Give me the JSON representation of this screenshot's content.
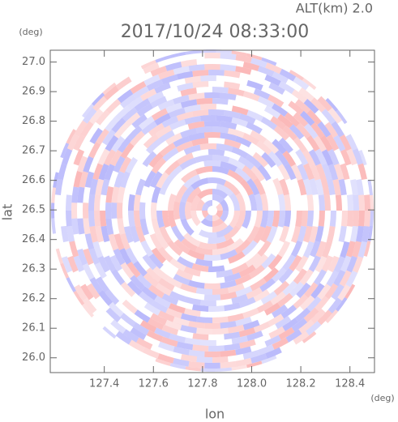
{
  "chart_data": {
    "type": "radar-ppi",
    "title": "2017/10/24 08:33:00",
    "subtitle": "ALT(km) 2.0",
    "x_label": "lon",
    "x_unit": "(deg)",
    "y_label": "lat",
    "y_unit": "(deg)",
    "xlim": [
      127.18,
      128.5
    ],
    "xticks": [
      127.4,
      127.6,
      127.8,
      {
        "value": 128.0,
        "label": "128.0"
      },
      128.2,
      128.4
    ],
    "ylim": [
      25.95,
      27.04
    ],
    "yticks": [
      {
        "value": 26.0,
        "label": "26.0"
      },
      26.1,
      26.2,
      26.3,
      26.4,
      26.5,
      26.6,
      26.7,
      26.8,
      26.9,
      {
        "value": 27.0,
        "label": "27.0"
      }
    ]
  }
}
